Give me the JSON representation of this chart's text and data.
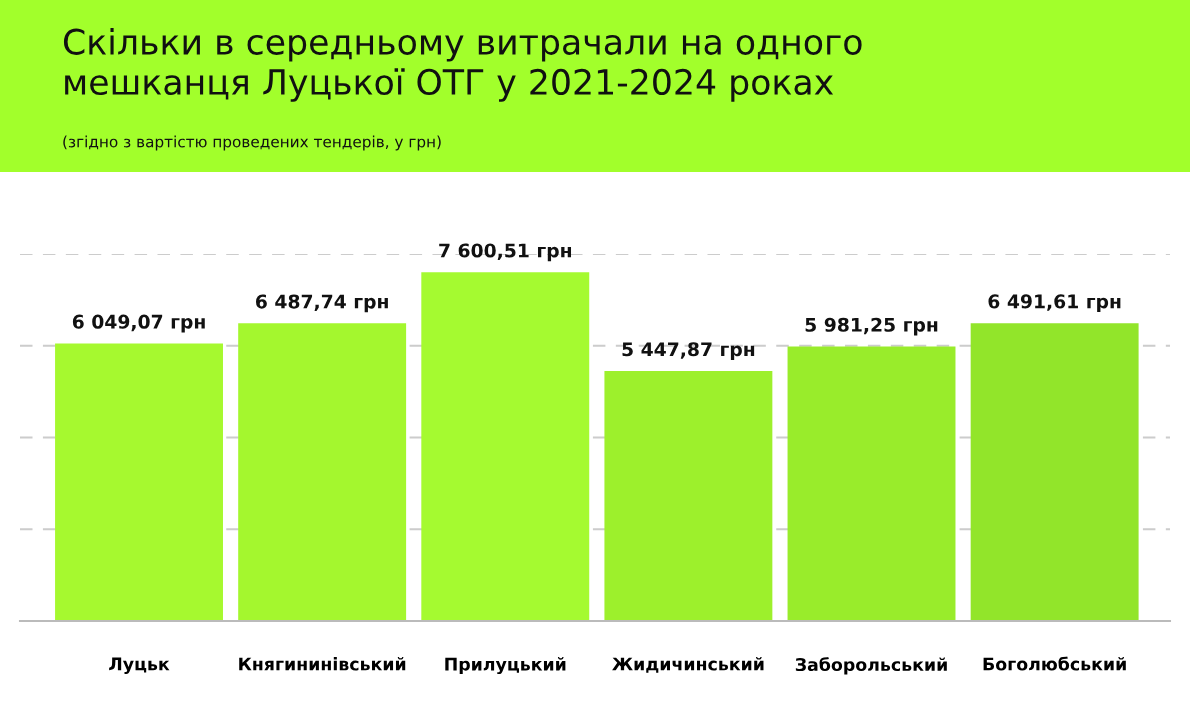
{
  "chart_data": {
    "type": "bar",
    "title": "Скільки в середньому витрачали на одного\nмешканця Луцької ОТГ у 2021-2024 роках",
    "subtitle": "(згідно з вартістю проведених тендерів, у грн)",
    "categories": [
      "Луцьк",
      "Княгининівський",
      "Прилуцький",
      "Жидичинський",
      "Заборольський",
      "Боголюбський"
    ],
    "values": [
      6049.07,
      6487.74,
      7600.51,
      5447.87,
      5981.25,
      6491.61
    ],
    "value_labels": [
      "6 049,07 грн",
      "6 487,74 грн",
      "7 600,51 грн",
      "5 447,87 грн",
      "5 981,25 грн",
      "6 491,61 грн"
    ],
    "colors": [
      "#a6f92f",
      "#a4f72e",
      "#a5fa30",
      "#9df02c",
      "#99ec2b",
      "#92e52a"
    ],
    "ylim": [
      0,
      8000
    ],
    "yticks": [
      {
        "value": 0,
        "label": null
      },
      {
        "value": 2000,
        "label": null
      },
      {
        "value": 4000,
        "label": null
      },
      {
        "value": 6000,
        "label": null
      },
      {
        "value": 8000,
        "label": null
      }
    ],
    "grid": "y",
    "tick_labels": "x"
  }
}
